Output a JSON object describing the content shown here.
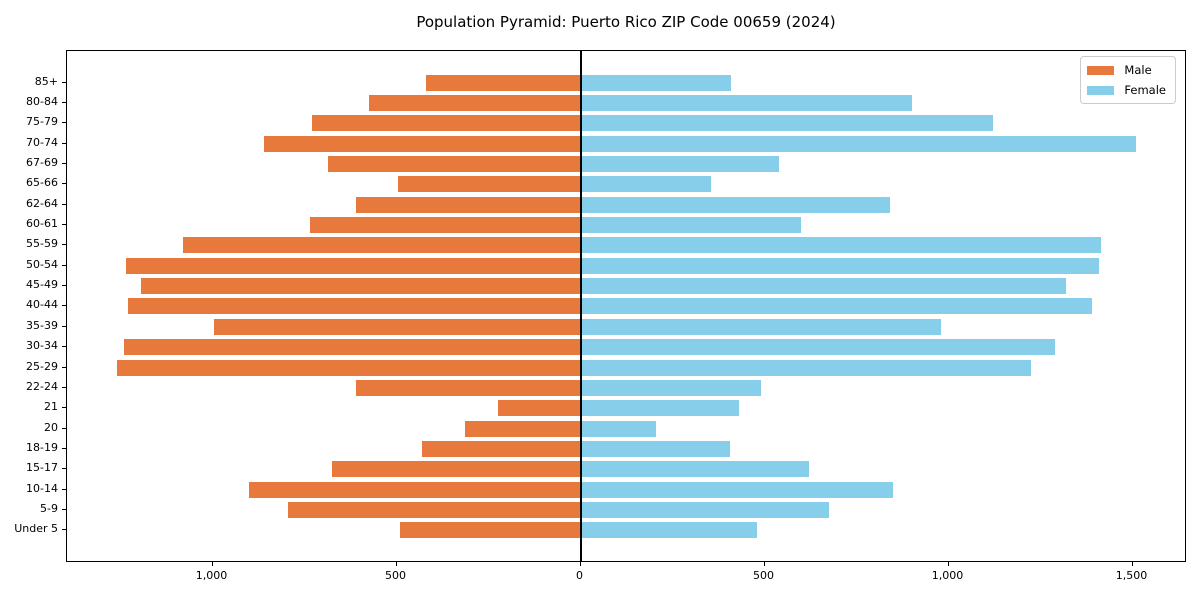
{
  "chart_data": {
    "type": "bar",
    "orientation": "horizontal_pyramid",
    "title": "Population Pyramid: Puerto Rico ZIP Code 00659 (2024)",
    "categories_top_to_bottom": [
      "85+",
      "80-84",
      "75-79",
      "70-74",
      "67-69",
      "65-66",
      "62-64",
      "60-61",
      "55-59",
      "50-54",
      "45-49",
      "40-44",
      "35-39",
      "30-34",
      "25-29",
      "22-24",
      "21",
      "20",
      "18-19",
      "15-17",
      "10-14",
      "5-9",
      "Under 5"
    ],
    "series": [
      {
        "name": "Male",
        "side": "left",
        "color": "#e8793c",
        "values": [
          420,
          575,
          730,
          860,
          685,
          495,
          610,
          735,
          1080,
          1235,
          1195,
          1230,
          995,
          1240,
          1260,
          610,
          225,
          315,
          430,
          675,
          900,
          795,
          490
        ]
      },
      {
        "name": "Female",
        "side": "right",
        "color": "#87ceeb",
        "values": [
          410,
          900,
          1120,
          1510,
          540,
          355,
          840,
          600,
          1415,
          1410,
          1320,
          1390,
          980,
          1290,
          1225,
          490,
          430,
          205,
          405,
          620,
          850,
          675,
          480
        ]
      }
    ],
    "x_axis": {
      "ticks": [
        {
          "value": -1000,
          "label": "1,000"
        },
        {
          "value": -500,
          "label": "500"
        },
        {
          "value": 0,
          "label": "0"
        },
        {
          "value": 500,
          "label": "500"
        },
        {
          "value": 1000,
          "label": "1,000"
        },
        {
          "value": 1500,
          "label": "1,500"
        }
      ]
    },
    "xlim": [
      -1395,
      1650
    ],
    "legend": {
      "position": "upper right",
      "entries": [
        "Male",
        "Female"
      ]
    },
    "grid": false,
    "axis_color": "#000000",
    "background_color": "#ffffff"
  }
}
